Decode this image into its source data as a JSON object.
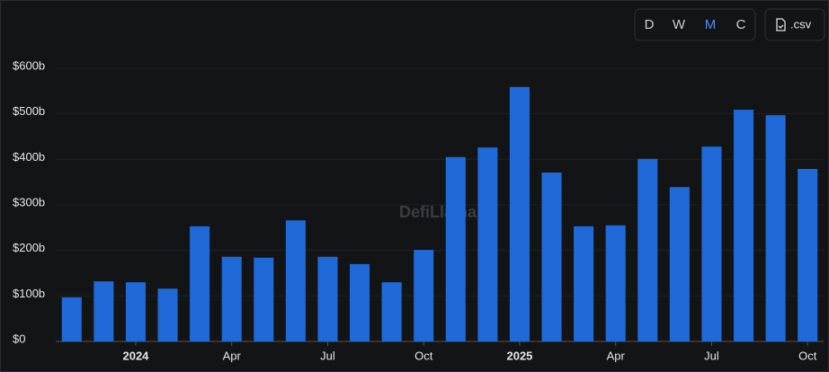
{
  "chart_data": {
    "type": "bar",
    "watermark": "DefiLlama",
    "intervals": [
      "D",
      "W",
      "M",
      "C"
    ],
    "active_interval": 2,
    "export": ".csv",
    "categories": [
      null,
      null,
      "2024",
      null,
      null,
      "Apr",
      null,
      null,
      "Jul",
      null,
      null,
      "Oct",
      null,
      null,
      "2025",
      null,
      null,
      "Apr",
      null,
      null,
      "Jul",
      null,
      null,
      "Oct"
    ],
    "values": [
      97,
      132,
      130,
      116,
      253,
      186,
      184,
      266,
      186,
      170,
      130,
      201,
      405,
      426,
      559,
      371,
      253,
      255,
      401,
      339,
      428,
      509,
      497,
      379
    ],
    "color": "#1f6ad8",
    "ylim": [
      0,
      600
    ],
    "yticks": [
      {
        "value": 0,
        "label": "$0"
      },
      {
        "value": 100,
        "label": "$100b"
      },
      {
        "value": 200,
        "label": "$200b"
      },
      {
        "value": 300,
        "label": "$300b"
      },
      {
        "value": 400,
        "label": "$400b"
      },
      {
        "value": 500,
        "label": "$500b"
      },
      {
        "value": 600,
        "label": "$600b"
      }
    ],
    "grid": true
  }
}
